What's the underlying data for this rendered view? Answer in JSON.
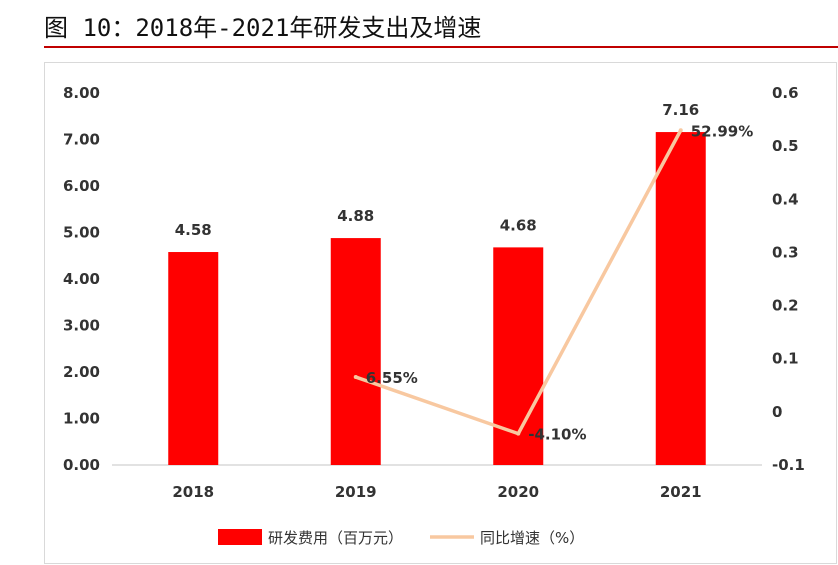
{
  "page": {
    "title": "图 10：2018年-2021年研发支出及增速"
  },
  "colors": {
    "bar": "#ff0000",
    "line": "#f8c8a0",
    "title_rule": "#c00000",
    "axis": "#d9d9d9",
    "text": "#333333"
  },
  "chart_data": {
    "type": "bar",
    "title": "",
    "categories": [
      "2018",
      "2019",
      "2020",
      "2021"
    ],
    "series": [
      {
        "name": "研发费用（百万元）",
        "type": "bar",
        "axis": "left",
        "values": [
          4.58,
          4.88,
          4.68,
          7.16
        ],
        "labels": [
          "4.58",
          "4.88",
          "4.68",
          "7.16"
        ]
      },
      {
        "name": "同比增速（%）",
        "type": "line",
        "axis": "right",
        "values": [
          null,
          0.0655,
          -0.041,
          0.5299
        ],
        "labels": [
          "",
          "6.55%",
          "-4.10%",
          "52.99%"
        ]
      }
    ],
    "y_left": {
      "min": 0,
      "max": 8,
      "ticks": [
        0,
        1,
        2,
        3,
        4,
        5,
        6,
        7,
        8
      ],
      "tick_labels": [
        "0.00",
        "1.00",
        "2.00",
        "3.00",
        "4.00",
        "5.00",
        "6.00",
        "7.00",
        "8.00"
      ]
    },
    "y_right": {
      "min": -0.1,
      "max": 0.6,
      "ticks": [
        -0.1,
        0,
        0.1,
        0.2,
        0.3,
        0.4,
        0.5,
        0.6
      ],
      "tick_labels": [
        "-0.1",
        "0",
        "0.1",
        "0.2",
        "0.3",
        "0.4",
        "0.5",
        "0.6"
      ]
    },
    "legend": {
      "position": "bottom",
      "items": [
        "研发费用（百万元）",
        "同比增速（%）"
      ]
    },
    "grid": false
  }
}
